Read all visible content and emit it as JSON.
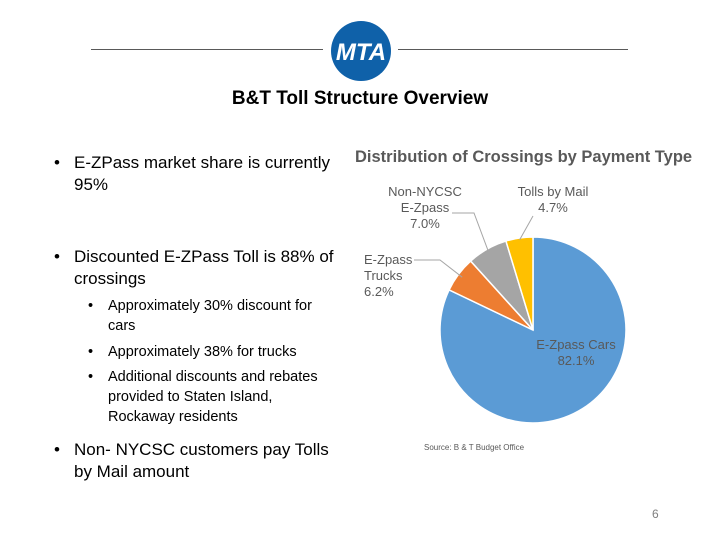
{
  "slide": {
    "title": "B&T Toll Structure Overview",
    "page_number": "6",
    "logo_text": "MTA"
  },
  "bullets": [
    {
      "level": 1,
      "text": "E-ZPass market share is currently 95%"
    },
    {
      "level": 1,
      "text": "Discounted E-ZPass Toll is 88% of crossings"
    },
    {
      "level": 2,
      "text": "Approximately 30% discount for cars"
    },
    {
      "level": 2,
      "text": "Approximately 38% for trucks"
    },
    {
      "level": 2,
      "text": "Additional discounts and rebates provided to Staten Island, Rockaway residents"
    },
    {
      "level": 1,
      "text": "Non- NYCSC customers pay Tolls by Mail amount"
    }
  ],
  "chart_data": {
    "type": "pie",
    "title": "Distribution of Crossings by Payment Type",
    "source": "Source: B & T Budget Office",
    "slices": [
      {
        "name": "E-Zpass Cars",
        "value": 82.1,
        "label": "82.1%",
        "color": "#5b9bd5"
      },
      {
        "name": "E-Zpass Trucks",
        "value": 6.2,
        "label": "6.2%",
        "color": "#ed7d31"
      },
      {
        "name": "Non-NYCSC E-Zpass",
        "value": 7.0,
        "label": "7.0%",
        "color": "#a5a5a5"
      },
      {
        "name": "Tolls by Mail",
        "value": 4.7,
        "label": "4.7%",
        "color": "#ffc000"
      }
    ]
  }
}
